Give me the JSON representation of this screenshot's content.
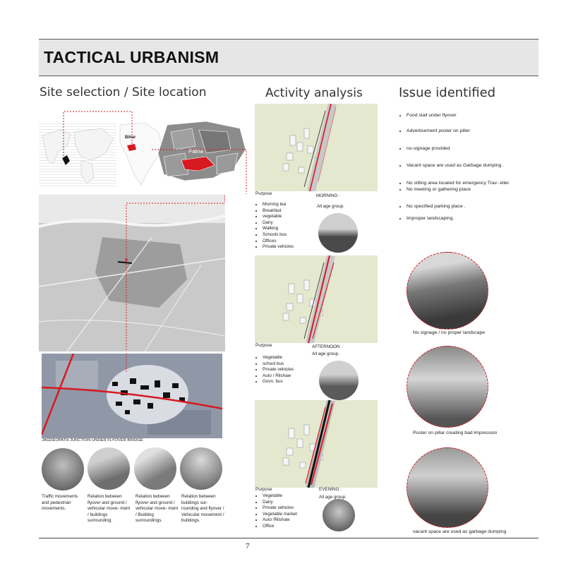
{
  "header": {
    "title": "TACTICAL URBANISM"
  },
  "sections": {
    "site": "Site selection / Site location",
    "activity": "Activity analysis",
    "issue": "Issue identified"
  },
  "map_labels": {
    "bihar": "Bihar",
    "patna": "Patna"
  },
  "junction_caption": "JAGDEOPATH JUNCTION UNDER FLYOVER BRIDGE",
  "circle_captions": [
    "Traffic movements and pedestrian movements.",
    "Relation between flyover and ground / vehicular move- ment / buildings surrounding.",
    "Relation between flyover and ground / vehicular move- ment / Building surroundings.",
    "Relation between buildings sur- rounding and flyover / Vehicular movement / buildings."
  ],
  "activity": {
    "morning": {
      "purpose_label": "Purpose",
      "items": [
        "Morning tea",
        "Breakfast",
        "vegetable",
        "Dairy",
        "Walking",
        "Schools bus",
        "Offices",
        "Private vehicles"
      ],
      "time": "MORNING :",
      "age": "All age group."
    },
    "afternoon": {
      "purpose_label": "Purpose",
      "items": [
        "Vegetable",
        "school bus",
        "Private vehicles",
        "Auto / Rilshaw",
        "Govn. bus"
      ],
      "time": "AFTERNOON :",
      "age": "All age group."
    },
    "evening": {
      "purpose_label": "Purpose",
      "items": [
        "Vegetable",
        "Dairy",
        "Private vehicles",
        "Vegetable market",
        "Auto /Rilshaw",
        "Office"
      ],
      "time": "EVENING :",
      "age": "All age group."
    }
  },
  "issues": [
    "Food stall under flyover",
    "Advertisement poster on piller",
    "no-signage provided",
    "Vacant space are used as Garbage dumping .",
    "No sitting area located for emergency Trav- eller.",
    "No meeting or gathering place",
    "No specified parking place .",
    "Improper landscaping."
  ],
  "issue_captions": [
    "No signage / no proper landscape",
    "Poster on pillar creating bad impression",
    "vacant space are used as garbage dumping"
  ],
  "page_number": "7",
  "colors": {
    "accent": "#d71920",
    "banner": "#e6e6e6",
    "diagram_bg": "#e3e8cf"
  }
}
